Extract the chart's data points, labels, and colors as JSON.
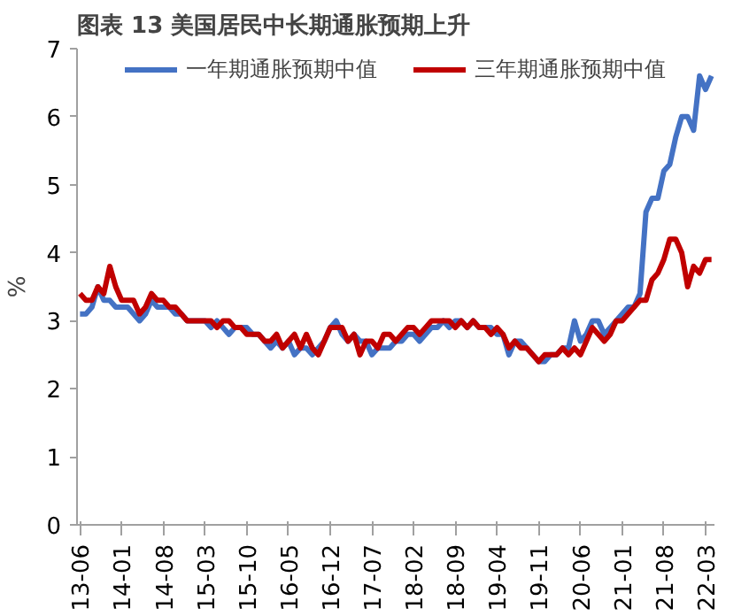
{
  "chart_data": {
    "type": "line",
    "title": "图表 13 美国居民中长期通胀预期上升",
    "ylabel": "%",
    "categories": [
      "13-06",
      null,
      null,
      null,
      null,
      null,
      null,
      "14-01",
      null,
      null,
      null,
      null,
      null,
      null,
      "14-08",
      null,
      null,
      null,
      null,
      null,
      null,
      "15-03",
      null,
      null,
      null,
      null,
      null,
      null,
      "15-10",
      null,
      null,
      null,
      null,
      null,
      null,
      "16-05",
      null,
      null,
      null,
      null,
      null,
      null,
      "16-12",
      null,
      null,
      null,
      null,
      null,
      null,
      "17-07",
      null,
      null,
      null,
      null,
      null,
      null,
      "18-02",
      null,
      null,
      null,
      null,
      null,
      null,
      "18-09",
      null,
      null,
      null,
      null,
      null,
      null,
      "19-04",
      null,
      null,
      null,
      null,
      null,
      null,
      "19-11",
      null,
      null,
      null,
      null,
      null,
      null,
      "20-06",
      null,
      null,
      null,
      null,
      null,
      null,
      "21-01",
      null,
      null,
      null,
      null,
      null,
      null,
      "21-08",
      null,
      null,
      null,
      null,
      null,
      null,
      "22-03",
      null
    ],
    "series": [
      {
        "name": "一年期通胀预期中值",
        "color": "#4472c4",
        "values": [
          3.1,
          3.1,
          3.2,
          3.5,
          3.3,
          3.3,
          3.2,
          3.2,
          3.2,
          3.1,
          3.0,
          3.1,
          3.3,
          3.2,
          3.2,
          3.2,
          3.1,
          3.1,
          3.0,
          3.0,
          3.0,
          3.0,
          2.9,
          3.0,
          2.9,
          2.8,
          2.9,
          2.9,
          2.9,
          2.8,
          2.8,
          2.7,
          2.6,
          2.7,
          2.6,
          2.7,
          2.5,
          2.6,
          2.6,
          2.5,
          2.6,
          2.7,
          2.9,
          3.0,
          2.8,
          2.7,
          2.8,
          2.7,
          2.7,
          2.5,
          2.6,
          2.6,
          2.6,
          2.7,
          2.7,
          2.8,
          2.8,
          2.7,
          2.8,
          2.9,
          2.9,
          3.0,
          2.9,
          3.0,
          3.0,
          2.9,
          3.0,
          2.9,
          2.9,
          2.9,
          2.8,
          2.8,
          2.5,
          2.7,
          2.7,
          2.6,
          2.5,
          2.4,
          2.4,
          2.5,
          2.5,
          2.6,
          2.6,
          3.0,
          2.7,
          2.8,
          3.0,
          3.0,
          2.8,
          2.9,
          3.0,
          3.1,
          3.2,
          3.2,
          3.4,
          4.6,
          4.8,
          4.8,
          5.2,
          5.3,
          5.7,
          6.0,
          6.0,
          5.8,
          6.6,
          6.4,
          6.6
        ]
      },
      {
        "name": "三年期通胀预期中值",
        "color": "#c00000",
        "values": [
          3.4,
          3.3,
          3.3,
          3.5,
          3.4,
          3.8,
          3.5,
          3.3,
          3.3,
          3.3,
          3.1,
          3.2,
          3.4,
          3.3,
          3.3,
          3.2,
          3.2,
          3.1,
          3.0,
          3.0,
          3.0,
          3.0,
          3.0,
          2.9,
          3.0,
          3.0,
          2.9,
          2.9,
          2.8,
          2.8,
          2.8,
          2.7,
          2.7,
          2.8,
          2.6,
          2.7,
          2.8,
          2.6,
          2.8,
          2.6,
          2.5,
          2.7,
          2.9,
          2.9,
          2.9,
          2.7,
          2.8,
          2.5,
          2.7,
          2.7,
          2.6,
          2.8,
          2.8,
          2.7,
          2.8,
          2.9,
          2.9,
          2.8,
          2.9,
          3.0,
          3.0,
          3.0,
          3.0,
          2.9,
          3.0,
          2.9,
          3.0,
          2.9,
          2.9,
          2.8,
          2.9,
          2.8,
          2.6,
          2.7,
          2.6,
          2.6,
          2.5,
          2.4,
          2.5,
          2.5,
          2.5,
          2.6,
          2.5,
          2.6,
          2.5,
          2.7,
          2.9,
          2.8,
          2.7,
          2.8,
          3.0,
          3.0,
          3.1,
          3.2,
          3.3,
          3.3,
          3.6,
          3.7,
          3.9,
          4.2,
          4.2,
          4.0,
          3.5,
          3.8,
          3.7,
          3.9,
          3.9
        ]
      }
    ],
    "ylim": [
      0,
      7
    ],
    "yticks": [
      0,
      1,
      2,
      3,
      4,
      5,
      6,
      7
    ],
    "grid": false,
    "legend": "top",
    "marker": "none",
    "line_style": "solid"
  }
}
